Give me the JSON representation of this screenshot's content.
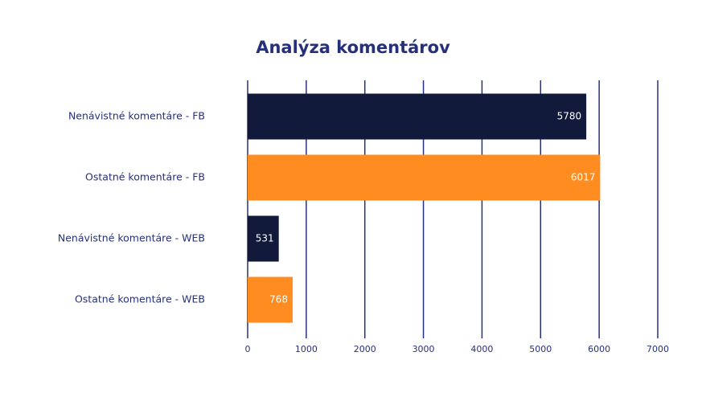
{
  "chart_data": {
    "type": "barh",
    "title": "Analýza komentárov",
    "categories": [
      "Nenávistné komentáre - FB",
      "Ostatné komentáre - FB",
      "Nenávistné komentáre - WEB",
      "Ostatné komentáre - WEB"
    ],
    "values": [
      5780,
      6017,
      531,
      768
    ],
    "colors": [
      "#111a3a",
      "#ff8c21",
      "#111a3a",
      "#ff8c21"
    ],
    "xlim": [
      0,
      7000
    ],
    "xticks": [
      0,
      1000,
      2000,
      3000,
      4000,
      5000,
      6000,
      7000
    ],
    "grid": true
  }
}
